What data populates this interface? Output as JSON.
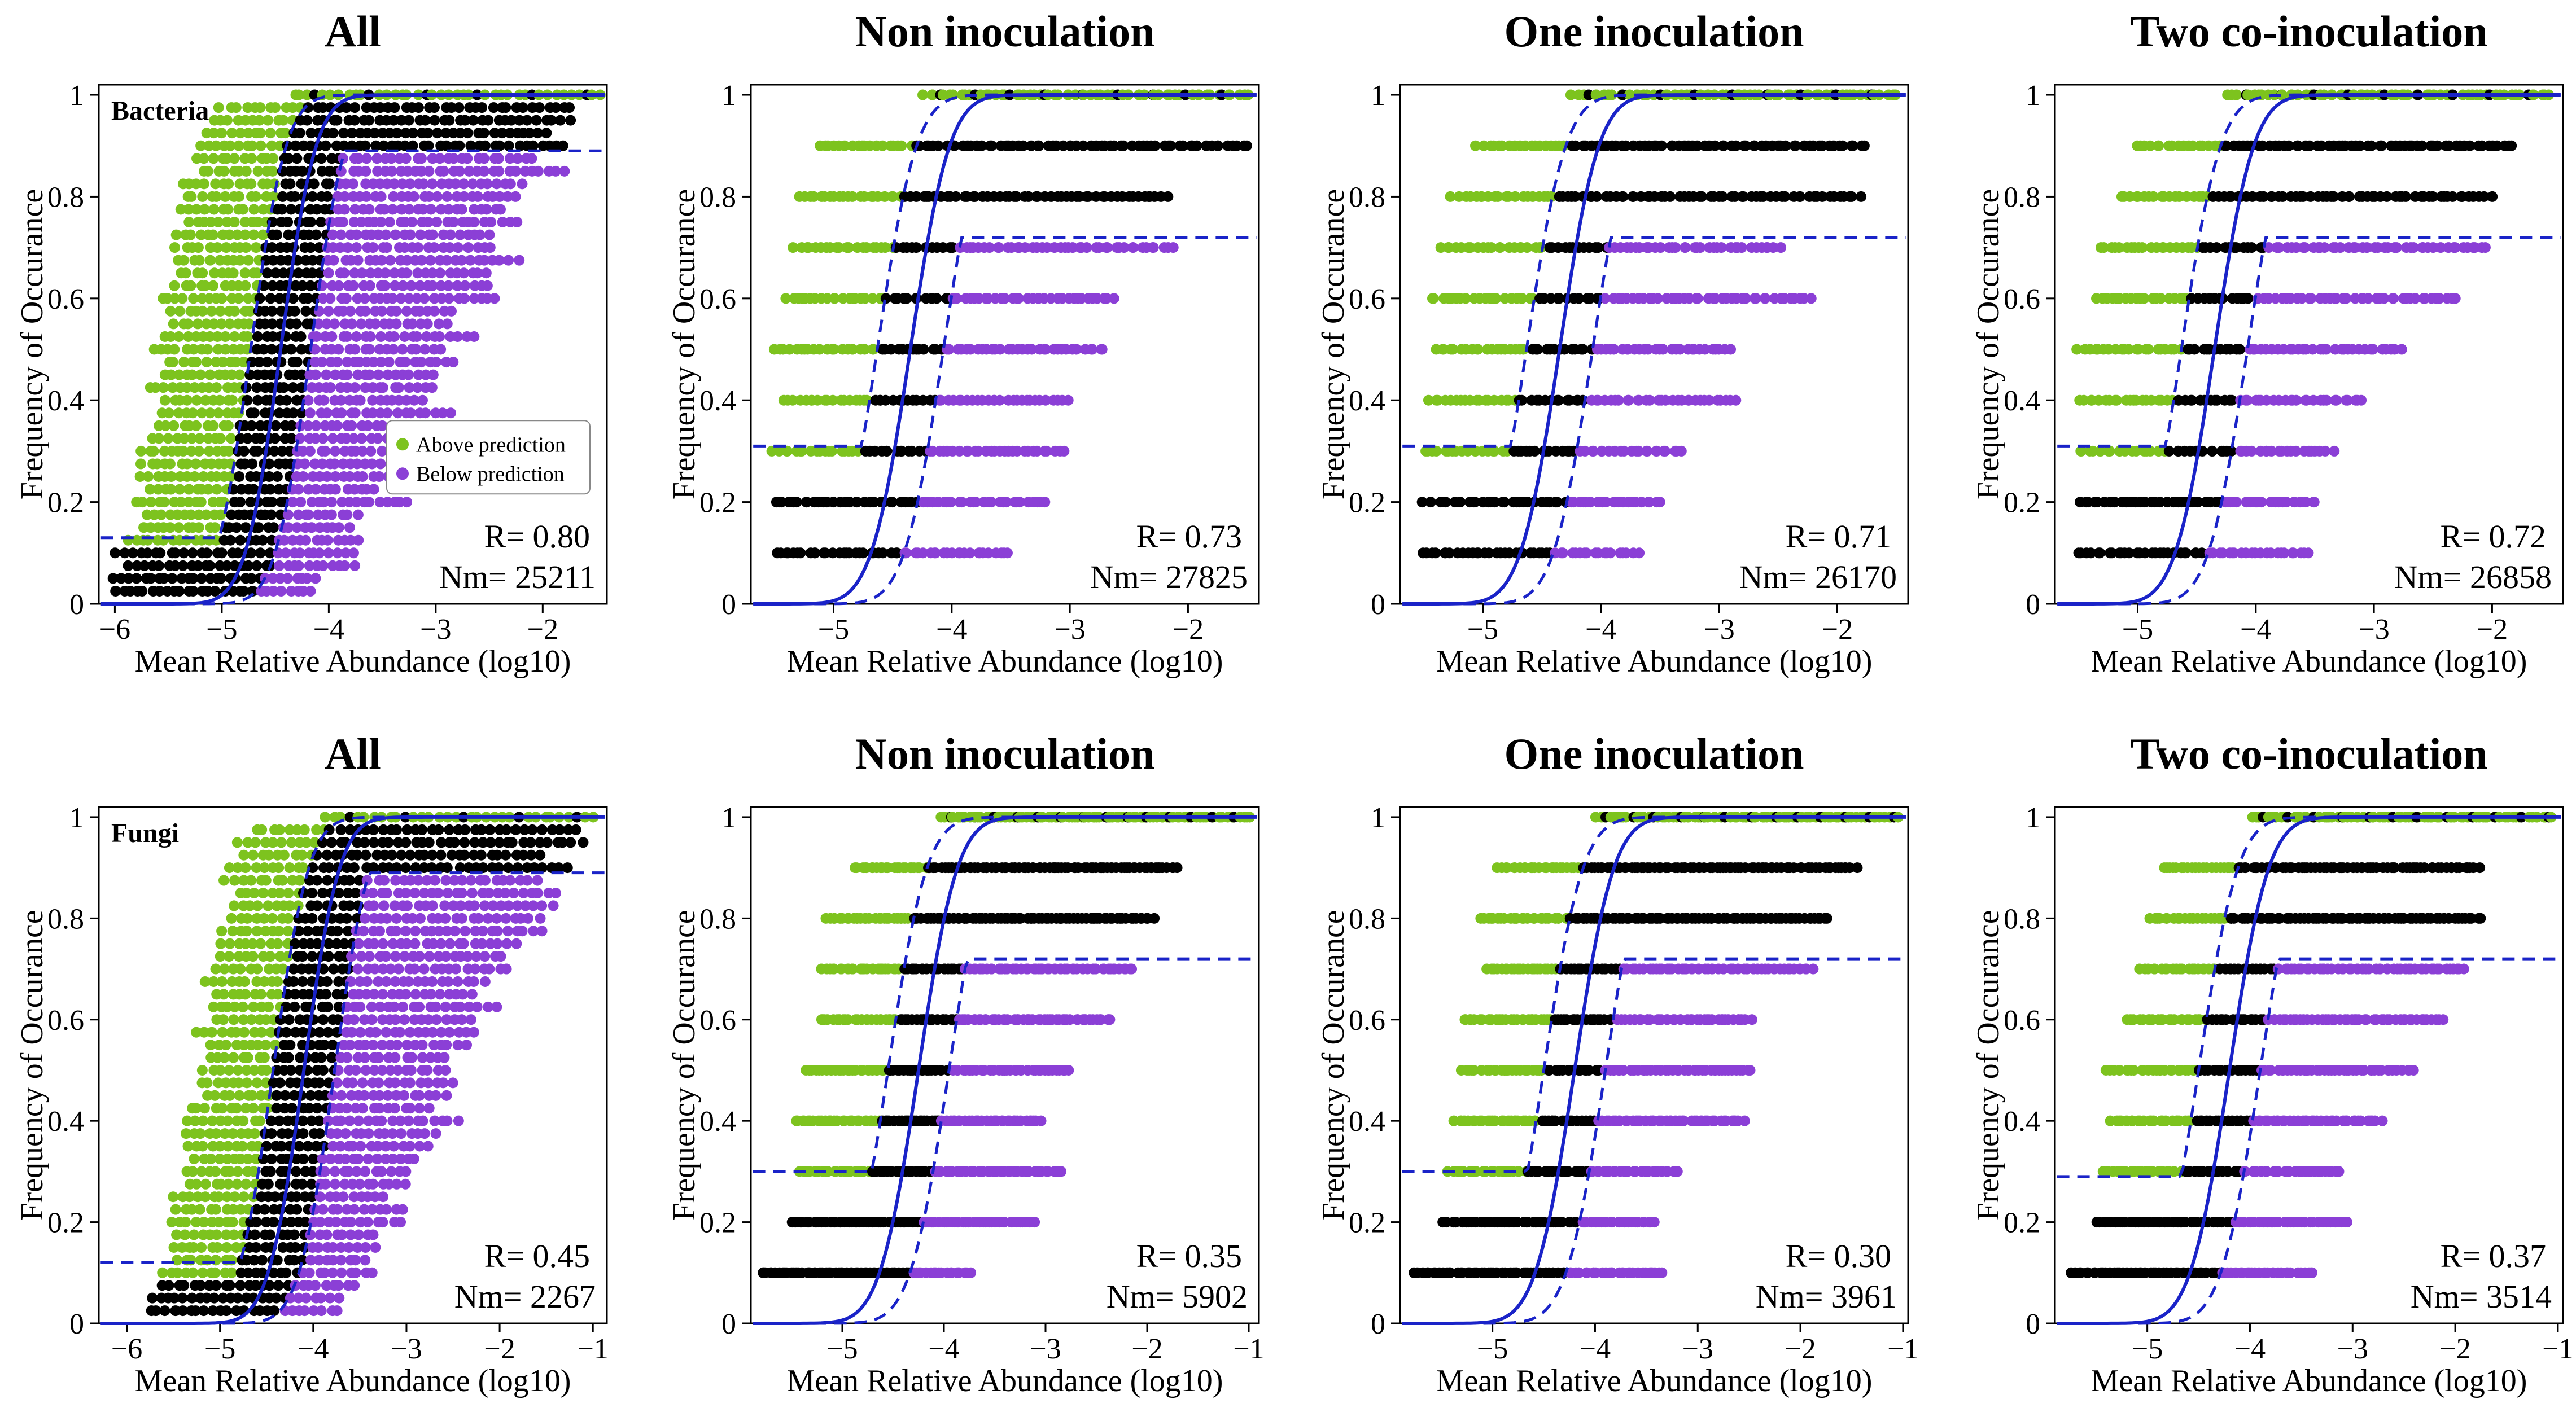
{
  "figure": {
    "colors": {
      "above": "#7dc31e",
      "neutral": "#000000",
      "below": "#8b3fd6",
      "fit": "#1a23c8"
    }
  },
  "chart_data": [
    {
      "type": "scatter",
      "title": "All",
      "tag": "Bacteria",
      "xlabel": "Mean Relative Abundance (log10)",
      "ylabel": "Frequency of Occurance",
      "xlim": [
        -6.15,
        -1.4
      ],
      "ylim": [
        0,
        1.02
      ],
      "xticks": [
        -6,
        -5,
        -4,
        -3,
        -2
      ],
      "xtick_labels": [
        "−6",
        "−5",
        "−4",
        "−3",
        "−2"
      ],
      "yticks": [
        0,
        0.2,
        0.4,
        0.6,
        0.8,
        1
      ],
      "ytick_labels": [
        "0",
        "0.2",
        "0.4",
        "0.6",
        "0.8",
        "1"
      ],
      "fit": {
        "m": -4.45,
        "s": 0.26
      },
      "upper_offset": -0.28,
      "lower_offset": 0.28,
      "upper_floor": 0.13,
      "lower_cap": 0.89,
      "levels": 40,
      "xmin": -6.0,
      "xmax": -1.45,
      "points_per_level": 6,
      "density": 1.0,
      "R": "R= 0.80",
      "Nm": "Nm= 25211",
      "legend": {
        "above": "Above prediction",
        "below": "Below prediction"
      }
    },
    {
      "type": "scatter",
      "title": "Non inoculation",
      "xlabel": "Mean Relative Abundance (log10)",
      "ylabel": "Frequency of Occurance",
      "xlim": [
        -5.7,
        -1.4
      ],
      "ylim": [
        0,
        1.02
      ],
      "xticks": [
        -5,
        -4,
        -3,
        -2
      ],
      "xtick_labels": [
        "−5",
        "−4",
        "−3",
        "−2"
      ],
      "yticks": [
        0,
        0.2,
        0.4,
        0.6,
        0.8,
        1
      ],
      "ytick_labels": [
        "0",
        "0.2",
        "0.4",
        "0.6",
        "0.8",
        "1"
      ],
      "fit": {
        "m": -4.35,
        "s": 0.26
      },
      "upper_offset": -0.28,
      "lower_offset": 0.28,
      "upper_floor": 0.31,
      "lower_cap": 0.72,
      "levels": 10,
      "xmin": -5.5,
      "xmax": -1.5,
      "points_per_level": 10,
      "density": 1.0,
      "R": "R= 0.73",
      "Nm": "Nm= 27825"
    },
    {
      "type": "scatter",
      "title": "One inoculation",
      "xlabel": "Mean Relative Abundance (log10)",
      "ylabel": "Frequency of Occurance",
      "xlim": [
        -5.7,
        -1.4
      ],
      "ylim": [
        0,
        1.02
      ],
      "xticks": [
        -5,
        -4,
        -3,
        -2
      ],
      "xtick_labels": [
        "−5",
        "−4",
        "−3",
        "−2"
      ],
      "yticks": [
        0,
        0.2,
        0.4,
        0.6,
        0.8,
        1
      ],
      "ytick_labels": [
        "0",
        "0.2",
        "0.4",
        "0.6",
        "0.8",
        "1"
      ],
      "fit": {
        "m": -4.35,
        "s": 0.26
      },
      "upper_offset": -0.28,
      "lower_offset": 0.28,
      "upper_floor": 0.31,
      "lower_cap": 0.72,
      "levels": 10,
      "xmin": -5.5,
      "xmax": -1.5,
      "points_per_level": 10,
      "density": 1.0,
      "R": "R= 0.71",
      "Nm": "Nm= 26170"
    },
    {
      "type": "scatter",
      "title": "Two co-inoculation",
      "xlabel": "Mean Relative Abundance (log10)",
      "ylabel": "Frequency of Occurance",
      "xlim": [
        -5.7,
        -1.4
      ],
      "ylim": [
        0,
        1.02
      ],
      "xticks": [
        -5,
        -4,
        -3,
        -2
      ],
      "xtick_labels": [
        "−5",
        "−4",
        "−3",
        "−2"
      ],
      "yticks": [
        0,
        0.2,
        0.4,
        0.6,
        0.8,
        1
      ],
      "ytick_labels": [
        "0",
        "0.2",
        "0.4",
        "0.6",
        "0.8",
        "1"
      ],
      "fit": {
        "m": -4.35,
        "s": 0.26
      },
      "upper_offset": -0.28,
      "lower_offset": 0.28,
      "upper_floor": 0.31,
      "lower_cap": 0.72,
      "levels": 10,
      "xmin": -5.5,
      "xmax": -1.5,
      "points_per_level": 10,
      "density": 1.0,
      "R": "R= 0.72",
      "Nm": "Nm= 26858"
    },
    {
      "type": "scatter",
      "title": "All",
      "tag": "Fungi",
      "xlabel": "Mean Relative Abundance (log10)",
      "ylabel": "Frequency of Occurance",
      "xlim": [
        -6.3,
        -0.85
      ],
      "ylim": [
        0,
        1.02
      ],
      "xticks": [
        -6,
        -5,
        -4,
        -3,
        -2,
        -1
      ],
      "xtick_labels": [
        "−6",
        "−5",
        "−4",
        "−3",
        "−2",
        "−1"
      ],
      "yticks": [
        0,
        0.2,
        0.4,
        0.6,
        0.8,
        1
      ],
      "ytick_labels": [
        "0",
        "0.2",
        "0.4",
        "0.6",
        "0.8",
        "1"
      ],
      "fit": {
        "m": -4.1,
        "s": 0.3
      },
      "upper_offset": -0.33,
      "lower_offset": 0.33,
      "upper_floor": 0.12,
      "lower_cap": 0.89,
      "levels": 40,
      "xmin": -6.1,
      "xmax": -1.0,
      "points_per_level": 5,
      "density": 1.0,
      "R": "R= 0.45",
      "Nm": "Nm= 2267"
    },
    {
      "type": "scatter",
      "title": "Non inoculation",
      "xlabel": "Mean Relative Abundance (log10)",
      "ylabel": "Frequency of Occurance",
      "xlim": [
        -5.9,
        -0.9
      ],
      "ylim": [
        0,
        1.02
      ],
      "xticks": [
        -5,
        -4,
        -3,
        -2,
        -1
      ],
      "xtick_labels": [
        "−5",
        "−4",
        "−3",
        "−2",
        "−1"
      ],
      "yticks": [
        0,
        0.2,
        0.4,
        0.6,
        0.8,
        1
      ],
      "ytick_labels": [
        "0",
        "0.2",
        "0.4",
        "0.6",
        "0.8",
        "1"
      ],
      "fit": {
        "m": -4.25,
        "s": 0.3
      },
      "upper_offset": -0.3,
      "lower_offset": 0.3,
      "upper_floor": 0.3,
      "lower_cap": 0.72,
      "levels": 10,
      "xmin": -5.8,
      "xmax": -1.0,
      "points_per_level": 14,
      "density": 1.0,
      "R": "R= 0.35",
      "Nm": "Nm= 5902"
    },
    {
      "type": "scatter",
      "title": "One inoculation",
      "xlabel": "Mean Relative Abundance (log10)",
      "ylabel": "Frequency of Occurance",
      "xlim": [
        -5.9,
        -0.95
      ],
      "ylim": [
        0,
        1.02
      ],
      "xticks": [
        -5,
        -4,
        -3,
        -2,
        -1
      ],
      "xtick_labels": [
        "−5",
        "−4",
        "−3",
        "−2",
        "−1"
      ],
      "yticks": [
        0,
        0.2,
        0.4,
        0.6,
        0.8,
        1
      ],
      "ytick_labels": [
        "0",
        "0.2",
        "0.4",
        "0.6",
        "0.8",
        "1"
      ],
      "fit": {
        "m": -4.2,
        "s": 0.3
      },
      "upper_offset": -0.3,
      "lower_offset": 0.3,
      "upper_floor": 0.3,
      "lower_cap": 0.72,
      "levels": 10,
      "xmin": -5.8,
      "xmax": -1.05,
      "points_per_level": 13,
      "density": 1.0,
      "R": "R= 0.30",
      "Nm": "Nm= 3961"
    },
    {
      "type": "scatter",
      "title": "Two co-inoculation",
      "xlabel": "Mean Relative Abundance (log10)",
      "ylabel": "Frequency of Occurance",
      "xlim": [
        -5.9,
        -0.95
      ],
      "ylim": [
        0,
        1.02
      ],
      "xticks": [
        -5,
        -4,
        -3,
        -2,
        -1
      ],
      "xtick_labels": [
        "−5",
        "−4",
        "−3",
        "−2",
        "−1"
      ],
      "yticks": [
        0,
        0.2,
        0.4,
        0.6,
        0.8,
        1
      ],
      "ytick_labels": [
        "0",
        "0.2",
        "0.4",
        "0.6",
        "0.8",
        "1"
      ],
      "fit": {
        "m": -4.2,
        "s": 0.3
      },
      "upper_offset": -0.3,
      "lower_offset": 0.3,
      "upper_floor": 0.29,
      "lower_cap": 0.72,
      "levels": 10,
      "xmin": -5.8,
      "xmax": -1.05,
      "points_per_level": 12,
      "density": 1.0,
      "R": "R= 0.37",
      "Nm": "Nm= 3514"
    }
  ]
}
